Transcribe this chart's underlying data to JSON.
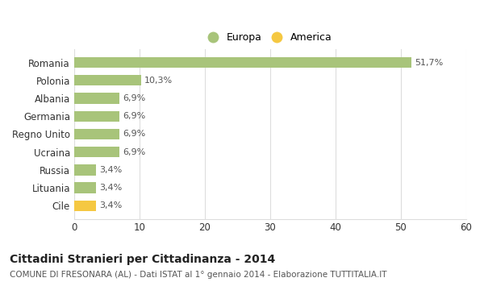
{
  "categories": [
    "Cile",
    "Lituania",
    "Russia",
    "Ucraina",
    "Regno Unito",
    "Germania",
    "Albania",
    "Polonia",
    "Romania"
  ],
  "values": [
    3.4,
    3.4,
    3.4,
    6.9,
    6.9,
    6.9,
    6.9,
    10.3,
    51.7
  ],
  "labels": [
    "3,4%",
    "3,4%",
    "3,4%",
    "6,9%",
    "6,9%",
    "6,9%",
    "6,9%",
    "10,3%",
    "51,7%"
  ],
  "colors": [
    "#f5c842",
    "#a8c47a",
    "#a8c47a",
    "#a8c47a",
    "#a8c47a",
    "#a8c47a",
    "#a8c47a",
    "#a8c47a",
    "#a8c47a"
  ],
  "europa_color": "#a8c47a",
  "america_color": "#f5c842",
  "background_color": "#ffffff",
  "grid_color": "#dddddd",
  "title": "Cittadini Stranieri per Cittadinanza - 2014",
  "subtitle": "COMUNE DI FRESONARA (AL) - Dati ISTAT al 1° gennaio 2014 - Elaborazione TUTTITALIA.IT",
  "xlim": [
    0,
    60
  ],
  "xticks": [
    0,
    10,
    20,
    30,
    40,
    50,
    60
  ],
  "legend_europa": "Europa",
  "legend_america": "America",
  "bar_height": 0.6
}
